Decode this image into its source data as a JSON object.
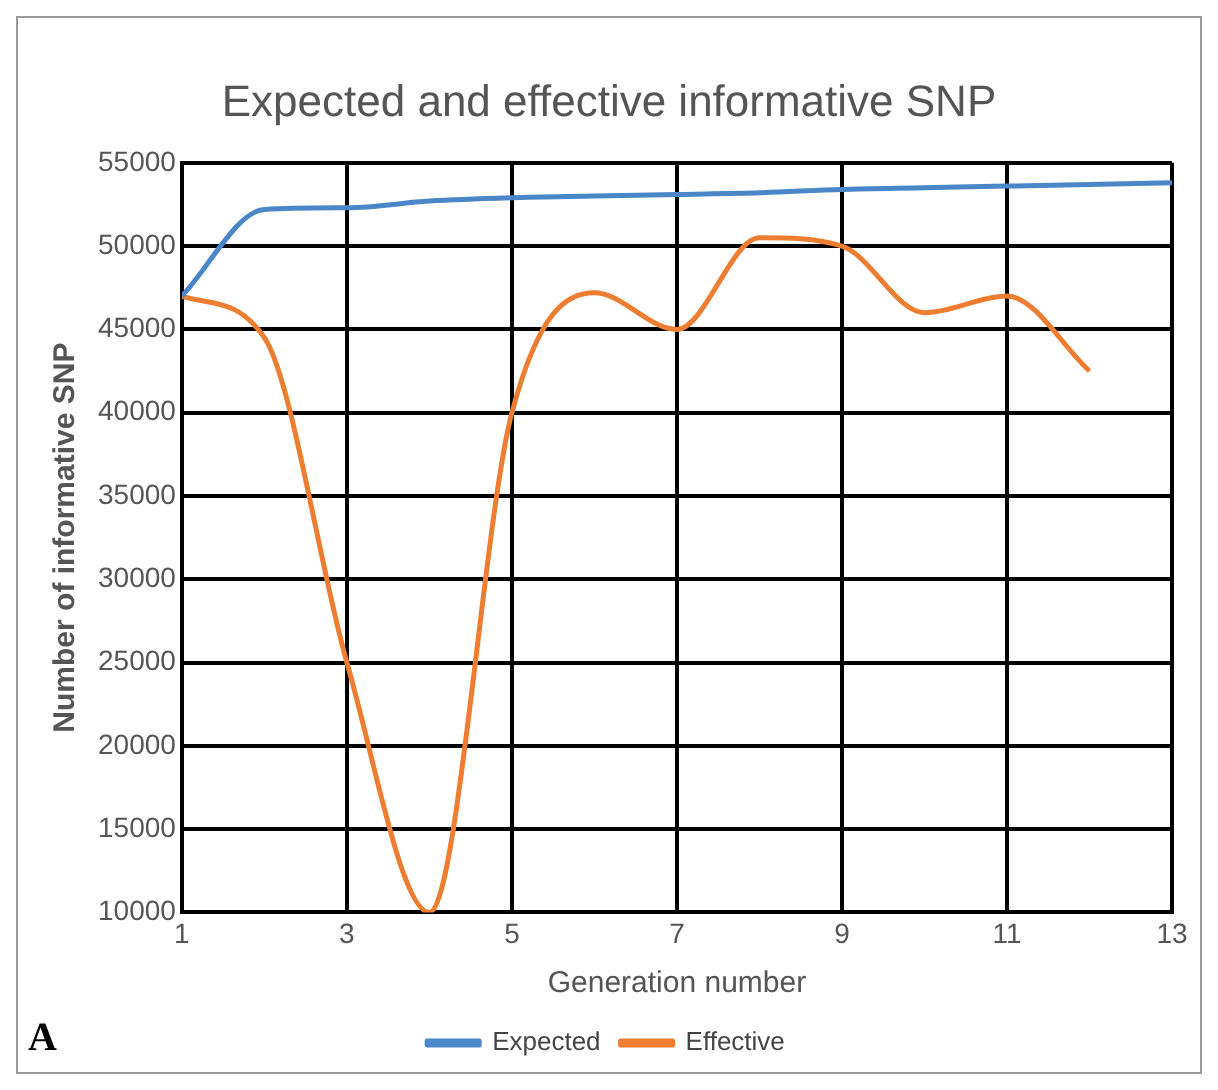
{
  "chart_data": {
    "type": "line",
    "title": "Expected and effective informative SNP",
    "xlabel": "Generation number",
    "ylabel": "Number of informative SNP",
    "x": [
      1,
      2,
      3,
      4,
      5,
      6,
      7,
      8,
      9,
      10,
      11,
      12,
      13
    ],
    "series": [
      {
        "name": "Expected",
        "color": "#4a86c8",
        "values": [
          47000,
          52200,
          52300,
          52700,
          52900,
          53000,
          53100,
          53200,
          53400,
          53500,
          53600,
          53700,
          53800
        ]
      },
      {
        "name": "Effective",
        "color": "#ed7d31",
        "values": [
          47000,
          44500,
          25000,
          10000,
          40000,
          47200,
          45000,
          50500,
          50000,
          46000,
          47000,
          42500,
          null
        ]
      }
    ],
    "xlim": [
      1,
      13
    ],
    "xticks": [
      1,
      3,
      5,
      7,
      9,
      11,
      13
    ],
    "ylim": [
      10000,
      55000
    ],
    "yticks": [
      10000,
      15000,
      20000,
      25000,
      30000,
      35000,
      40000,
      45000,
      50000,
      55000
    ],
    "grid": true,
    "legend": "bottom",
    "marker": "none",
    "line_style": "solid",
    "annotations": [
      "A"
    ]
  }
}
